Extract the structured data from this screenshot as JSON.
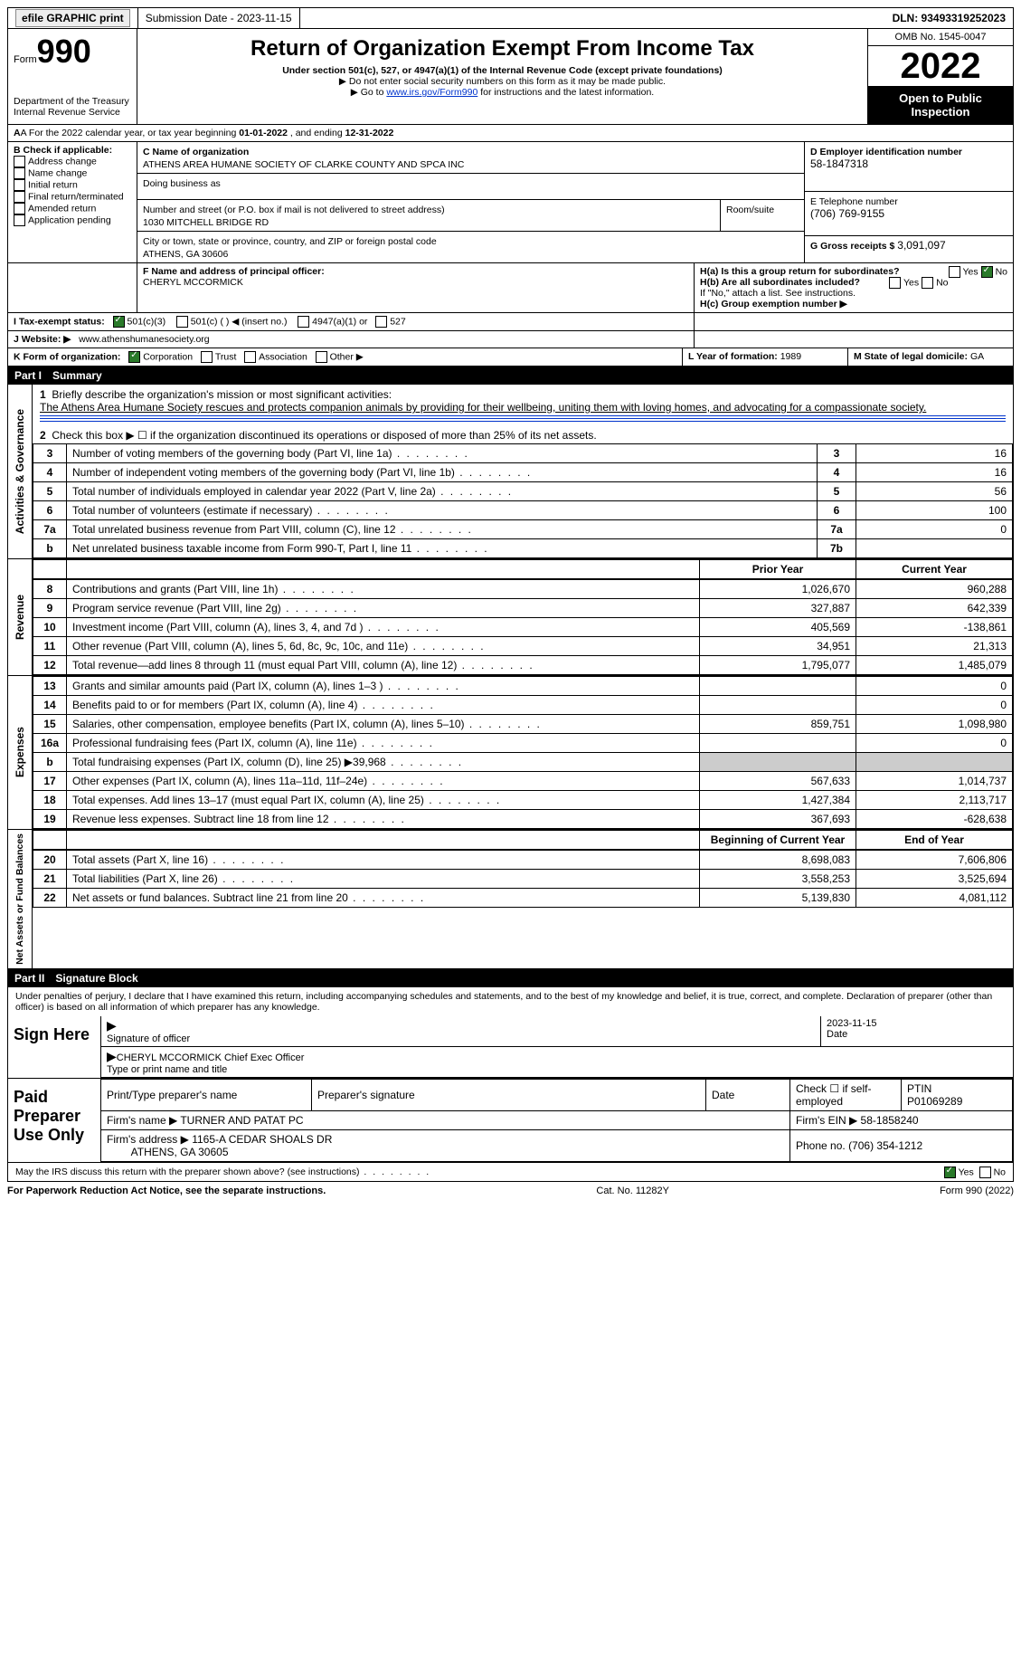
{
  "topbar": {
    "efile": "efile GRAPHIC print",
    "submission": "Submission Date - 2023-11-15",
    "dln": "DLN: 93493319252023"
  },
  "header": {
    "form_prefix": "Form",
    "form_num": "990",
    "title": "Return of Organization Exempt From Income Tax",
    "sub1": "Under section 501(c), 527, or 4947(a)(1) of the Internal Revenue Code (except private foundations)",
    "sub2": "▶ Do not enter social security numbers on this form as it may be made public.",
    "sub3_a": "▶ Go to ",
    "sub3_link": "www.irs.gov/Form990",
    "sub3_b": " for instructions and the latest information.",
    "dept": "Department of the Treasury",
    "irs": "Internal Revenue Service",
    "omb": "OMB No. 1545-0047",
    "year": "2022",
    "inspect": "Open to Public Inspection"
  },
  "lineA": {
    "prefix": "A For the 2022 calendar year, or tax year beginning ",
    "begin": "01-01-2022",
    "mid": " , and ending ",
    "end": "12-31-2022"
  },
  "boxB": {
    "title": "B Check if applicable:",
    "items": [
      "Address change",
      "Name change",
      "Initial return",
      "Final return/terminated",
      "Amended return",
      "Application pending"
    ]
  },
  "boxC": {
    "label": "C Name of organization",
    "name": "ATHENS AREA HUMANE SOCIETY OF CLARKE COUNTY AND SPCA INC",
    "dba_label": "Doing business as",
    "addr_label": "Number and street (or P.O. box if mail is not delivered to street address)",
    "room_label": "Room/suite",
    "addr": "1030 MITCHELL BRIDGE RD",
    "city_label": "City or town, state or province, country, and ZIP or foreign postal code",
    "city": "ATHENS, GA  30606"
  },
  "boxD": {
    "label": "D Employer identification number",
    "val": "58-1847318"
  },
  "boxE": {
    "label": "E Telephone number",
    "val": "(706) 769-9155"
  },
  "boxG": {
    "label": "G Gross receipts $ ",
    "val": "3,091,097"
  },
  "boxF": {
    "label": "F Name and address of principal officer:",
    "val": "CHERYL MCCORMICK"
  },
  "boxH": {
    "ha": "H(a)  Is this a group return for subordinates?",
    "hb": "H(b)  Are all subordinates included?",
    "note": "If \"No,\" attach a list. See instructions.",
    "hc": "H(c)  Group exemption number ▶",
    "yes": "Yes",
    "no": "No"
  },
  "boxI": {
    "label": "I   Tax-exempt status:",
    "o1": "501(c)(3)",
    "o2": "501(c) (  ) ◀ (insert no.)",
    "o3": "4947(a)(1) or",
    "o4": "527"
  },
  "boxJ": {
    "label": "J   Website: ▶",
    "val": "www.athenshumanesociety.org"
  },
  "boxK": {
    "label": "K Form of organization:",
    "o1": "Corporation",
    "o2": "Trust",
    "o3": "Association",
    "o4": "Other ▶"
  },
  "boxL": {
    "label": "L Year of formation: ",
    "val": "1989"
  },
  "boxM": {
    "label": "M State of legal domicile: ",
    "val": "GA"
  },
  "parts": {
    "p1": "Part I",
    "p1t": "Summary",
    "p2": "Part II",
    "p2t": "Signature Block"
  },
  "summary": {
    "line1_label": "Briefly describe the organization's mission or most significant activities:",
    "line1_text": "The Athens Area Humane Society rescues and protects companion animals by providing for their wellbeing, uniting them with loving homes, and advocating for a compassionate society.",
    "line2": "Check this box ▶ ☐ if the organization discontinued its operations or disposed of more than 25% of its net assets.",
    "rows_gov": [
      {
        "n": "3",
        "d": "Number of voting members of the governing body (Part VI, line 1a)",
        "box": "3",
        "v": "16"
      },
      {
        "n": "4",
        "d": "Number of independent voting members of the governing body (Part VI, line 1b)",
        "box": "4",
        "v": "16"
      },
      {
        "n": "5",
        "d": "Total number of individuals employed in calendar year 2022 (Part V, line 2a)",
        "box": "5",
        "v": "56"
      },
      {
        "n": "6",
        "d": "Total number of volunteers (estimate if necessary)",
        "box": "6",
        "v": "100"
      },
      {
        "n": "7a",
        "d": "Total unrelated business revenue from Part VIII, column (C), line 12",
        "box": "7a",
        "v": "0"
      },
      {
        "n": "b",
        "d": "Net unrelated business taxable income from Form 990-T, Part I, line 11",
        "box": "7b",
        "v": ""
      }
    ],
    "col_prior": "Prior Year",
    "col_curr": "Current Year",
    "rows_rev": [
      {
        "n": "8",
        "d": "Contributions and grants (Part VIII, line 1h)",
        "p": "1,026,670",
        "c": "960,288"
      },
      {
        "n": "9",
        "d": "Program service revenue (Part VIII, line 2g)",
        "p": "327,887",
        "c": "642,339"
      },
      {
        "n": "10",
        "d": "Investment income (Part VIII, column (A), lines 3, 4, and 7d )",
        "p": "405,569",
        "c": "-138,861"
      },
      {
        "n": "11",
        "d": "Other revenue (Part VIII, column (A), lines 5, 6d, 8c, 9c, 10c, and 11e)",
        "p": "34,951",
        "c": "21,313"
      },
      {
        "n": "12",
        "d": "Total revenue—add lines 8 through 11 (must equal Part VIII, column (A), line 12)",
        "p": "1,795,077",
        "c": "1,485,079"
      }
    ],
    "rows_exp": [
      {
        "n": "13",
        "d": "Grants and similar amounts paid (Part IX, column (A), lines 1–3 )",
        "p": "",
        "c": "0"
      },
      {
        "n": "14",
        "d": "Benefits paid to or for members (Part IX, column (A), line 4)",
        "p": "",
        "c": "0"
      },
      {
        "n": "15",
        "d": "Salaries, other compensation, employee benefits (Part IX, column (A), lines 5–10)",
        "p": "859,751",
        "c": "1,098,980"
      },
      {
        "n": "16a",
        "d": "Professional fundraising fees (Part IX, column (A), line 11e)",
        "p": "",
        "c": "0"
      },
      {
        "n": "b",
        "d": "Total fundraising expenses (Part IX, column (D), line 25) ▶39,968",
        "p": "shade",
        "c": "shade"
      },
      {
        "n": "17",
        "d": "Other expenses (Part IX, column (A), lines 11a–11d, 11f–24e)",
        "p": "567,633",
        "c": "1,014,737"
      },
      {
        "n": "18",
        "d": "Total expenses. Add lines 13–17 (must equal Part IX, column (A), line 25)",
        "p": "1,427,384",
        "c": "2,113,717"
      },
      {
        "n": "19",
        "d": "Revenue less expenses. Subtract line 18 from line 12",
        "p": "367,693",
        "c": "-628,638"
      }
    ],
    "col_begin": "Beginning of Current Year",
    "col_end": "End of Year",
    "rows_na": [
      {
        "n": "20",
        "d": "Total assets (Part X, line 16)",
        "p": "8,698,083",
        "c": "7,606,806"
      },
      {
        "n": "21",
        "d": "Total liabilities (Part X, line 26)",
        "p": "3,558,253",
        "c": "3,525,694"
      },
      {
        "n": "22",
        "d": "Net assets or fund balances. Subtract line 21 from line 20",
        "p": "5,139,830",
        "c": "4,081,112"
      }
    ],
    "vlabels": {
      "gov": "Activities & Governance",
      "rev": "Revenue",
      "exp": "Expenses",
      "na": "Net Assets or Fund Balances"
    }
  },
  "sig": {
    "penalty": "Under penalties of perjury, I declare that I have examined this return, including accompanying schedules and statements, and to the best of my knowledge and belief, it is true, correct, and complete. Declaration of preparer (other than officer) is based on all information of which preparer has any knowledge.",
    "sign_here": "Sign Here",
    "sig_officer": "Signature of officer",
    "date": "Date",
    "sig_date": "2023-11-15",
    "name_title": "CHERYL MCCORMICK  Chief Exec Officer",
    "name_title_label": "Type or print name and title",
    "paid": "Paid Preparer Use Only",
    "pp_name": "Print/Type preparer's name",
    "pp_sig": "Preparer's signature",
    "pp_date": "Date",
    "pp_self": "Check ☐ if self-employed",
    "ptin_label": "PTIN",
    "ptin": "P01069289",
    "firm_name_label": "Firm's name   ▶",
    "firm_name": "TURNER AND PATAT PC",
    "firm_ein_label": "Firm's EIN ▶",
    "firm_ein": "58-1858240",
    "firm_addr_label": "Firm's address ▶",
    "firm_addr1": "1165-A CEDAR SHOALS DR",
    "firm_addr2": "ATHENS, GA  30605",
    "phone_label": "Phone no.",
    "phone": "(706) 354-1212",
    "discuss": "May the IRS discuss this return with the preparer shown above? (see instructions)",
    "yes": "Yes",
    "no": "No"
  },
  "footer": {
    "left": "For Paperwork Reduction Act Notice, see the separate instructions.",
    "mid": "Cat. No. 11282Y",
    "right": "Form 990 (2022)"
  }
}
